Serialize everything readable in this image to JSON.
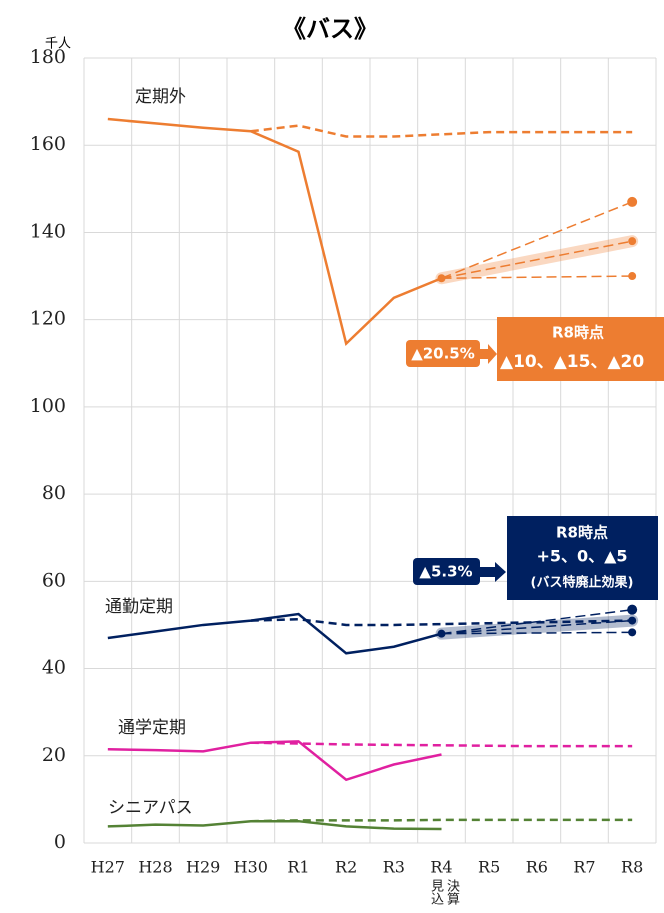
{
  "chart_data": {
    "type": "line",
    "title": "《バス》",
    "y_unit": "千人",
    "categories": [
      "H27",
      "H28",
      "H29",
      "H30",
      "R1",
      "R2",
      "R3",
      "R4",
      "R5",
      "R6",
      "R7",
      "R8"
    ],
    "category_note": [
      "見込",
      "決算"
    ],
    "ylim": [
      0,
      180
    ],
    "yticks": [
      0,
      20,
      40,
      60,
      80,
      100,
      120,
      140,
      160,
      180
    ],
    "grid": true,
    "series": [
      {
        "name": "定期外",
        "color": "#ed7d31",
        "values": [
          166,
          165,
          164,
          163.2,
          158.5,
          114.5,
          125,
          129.5,
          null,
          null,
          null,
          null
        ],
        "trend": [
          null,
          null,
          null,
          163.2,
          164.5,
          162,
          162,
          162.5,
          163,
          163,
          163,
          163
        ],
        "forecast": [
          147,
          138,
          130
        ],
        "highlight": 1
      },
      {
        "name": "通勤定期",
        "color": "#002060",
        "values": [
          47,
          48.5,
          50,
          51,
          52.5,
          43.5,
          45,
          48,
          null,
          null,
          null,
          null
        ],
        "trend": [
          null,
          null,
          null,
          51,
          51.3,
          50,
          50,
          50.2,
          50.4,
          50.6,
          50.8,
          51
        ],
        "forecast": [
          53.5,
          51,
          48.3
        ],
        "highlight": 1
      },
      {
        "name": "通学定期",
        "color": "#e020a0",
        "values": [
          21.5,
          21.3,
          21,
          23,
          23.3,
          14.5,
          18,
          20.3,
          null,
          null,
          null,
          null
        ],
        "trend": [
          null,
          null,
          null,
          23,
          22.8,
          22.6,
          22.5,
          22.4,
          22.3,
          22.2,
          22.2,
          22.2
        ]
      },
      {
        "name": "シニアパス",
        "color": "#548235",
        "values": [
          3.8,
          4.2,
          4,
          5,
          5,
          3.8,
          3.3,
          3.2,
          null,
          null,
          null,
          null
        ],
        "trend": [
          null,
          null,
          null,
          5,
          5.2,
          5.2,
          5.2,
          5.3,
          5.3,
          5.3,
          5.3,
          5.3
        ]
      }
    ],
    "annotations": [
      "▲20.5%",
      "R8時点",
      "▲10、▲15、▲20",
      "▲5.3%",
      "R8時点",
      "+5、0、▲5",
      "(バス特廃止効果)"
    ]
  }
}
